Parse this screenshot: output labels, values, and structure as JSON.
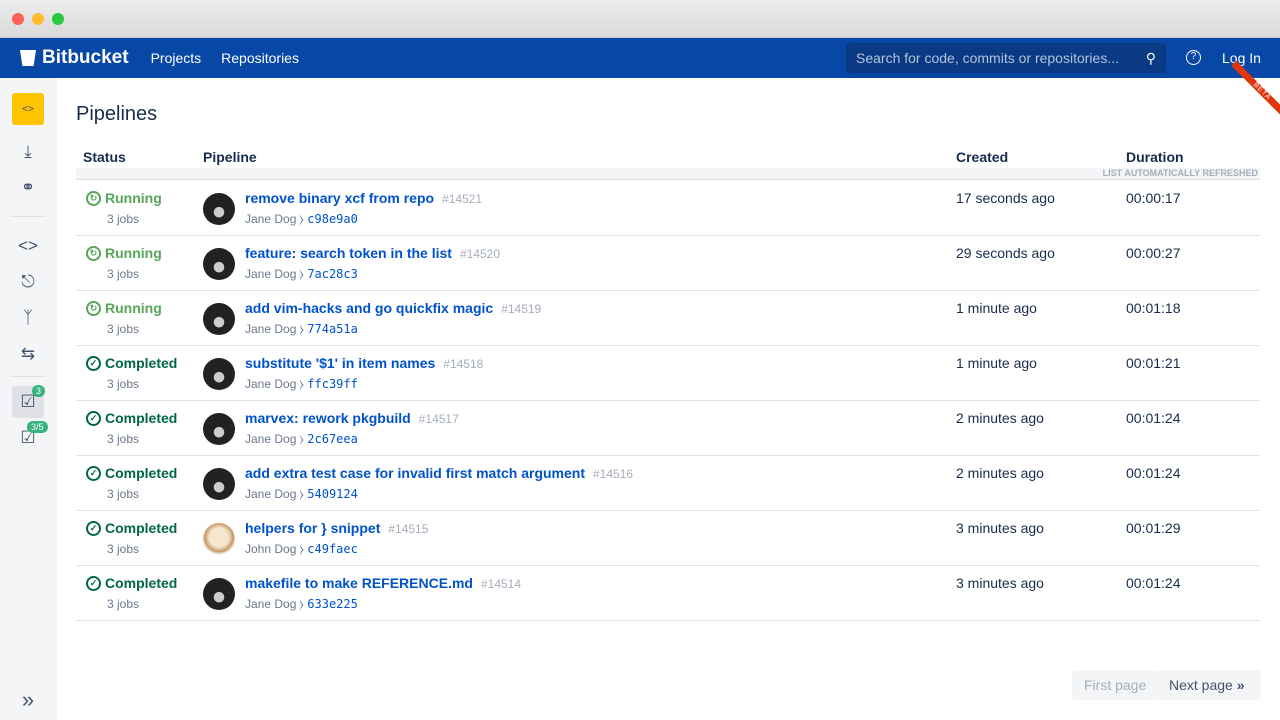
{
  "nav": {
    "brand": "Bitbucket",
    "links": [
      "Projects",
      "Repositories"
    ],
    "search_placeholder": "Search for code, commits or repositories...",
    "help": "?",
    "login": "Log In"
  },
  "sidebar": {
    "badge_pipelines": "3",
    "badge_deploy": "3/5",
    "expand": "»"
  },
  "beta": "BETA",
  "page": {
    "title": "Pipelines",
    "columns": {
      "status": "Status",
      "pipeline": "Pipeline",
      "created": "Created",
      "duration": "Duration"
    },
    "refresh_note": "LIST AUTOMATICALLY REFRESHED"
  },
  "colors": {
    "running": "#57a55a",
    "completed": "#006644",
    "link": "#0052cc",
    "nav": "#0747a6"
  },
  "rows": [
    {
      "status": "Running",
      "jobs": "3 jobs",
      "title": "remove binary xcf from repo",
      "num": "#14521",
      "author": "Jane Dog",
      "commit": "c98e9a0",
      "created": "17 seconds ago",
      "duration": "00:00:17"
    },
    {
      "status": "Running",
      "jobs": "3 jobs",
      "title": "feature: search token in the list",
      "num": "#14520",
      "author": "Jane Dog",
      "commit": "7ac28c3",
      "created": "29 seconds ago",
      "duration": "00:00:27"
    },
    {
      "status": "Running",
      "jobs": "3 jobs",
      "title": "add vim-hacks and go quickfix magic",
      "num": "#14519",
      "author": "Jane Dog",
      "commit": "774a51a",
      "created": "1 minute ago",
      "duration": "00:01:18"
    },
    {
      "status": "Completed",
      "jobs": "3 jobs",
      "title": "substitute '$1' in item names",
      "num": "#14518",
      "author": "Jane Dog",
      "commit": "ffc39ff",
      "created": "1 minute ago",
      "duration": "00:01:21"
    },
    {
      "status": "Completed",
      "jobs": "3 jobs",
      "title": "marvex: rework pkgbuild",
      "num": "#14517",
      "author": "Jane Dog",
      "commit": "2c67eea",
      "created": "2 minutes ago",
      "duration": "00:01:24"
    },
    {
      "status": "Completed",
      "jobs": "3 jobs",
      "title": "add extra test case for invalid first match argument",
      "num": "#14516",
      "author": "Jane Dog",
      "commit": "5409124",
      "created": "2 minutes ago",
      "duration": "00:01:24"
    },
    {
      "status": "Completed",
      "jobs": "3 jobs",
      "title": "helpers for } snippet",
      "num": "#14515",
      "author": "John Dog",
      "commit": "c49faec",
      "created": "3 minutes ago",
      "duration": "00:01:29"
    },
    {
      "status": "Completed",
      "jobs": "3 jobs",
      "title": "makefile to make REFERENCE.md",
      "num": "#14514",
      "author": "Jane Dog",
      "commit": "633e225",
      "created": "3 minutes ago",
      "duration": "00:01:24"
    }
  ],
  "pager": {
    "first": "First page",
    "next": "Next page"
  }
}
